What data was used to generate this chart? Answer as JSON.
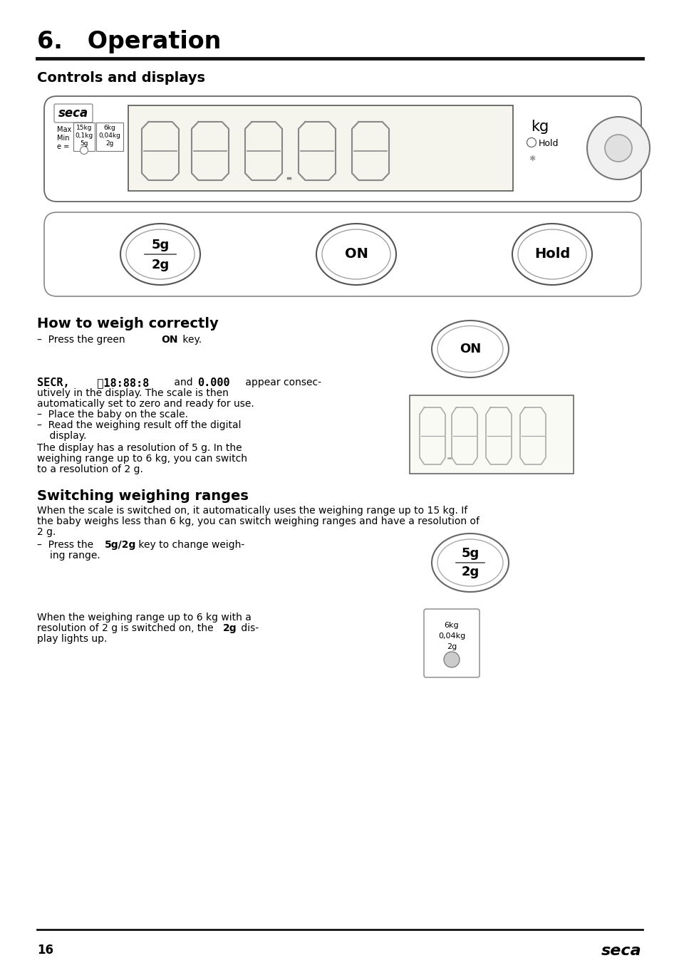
{
  "title": "6.   Operation",
  "section1": "Controls and displays",
  "section2": "How to weigh correctly",
  "section3": "Switching weighing ranges",
  "bg_color": "#ffffff",
  "text_color": "#000000",
  "page_number": "16",
  "body_text_size": 10.0,
  "section_title_size": 14,
  "main_title_size": 24
}
